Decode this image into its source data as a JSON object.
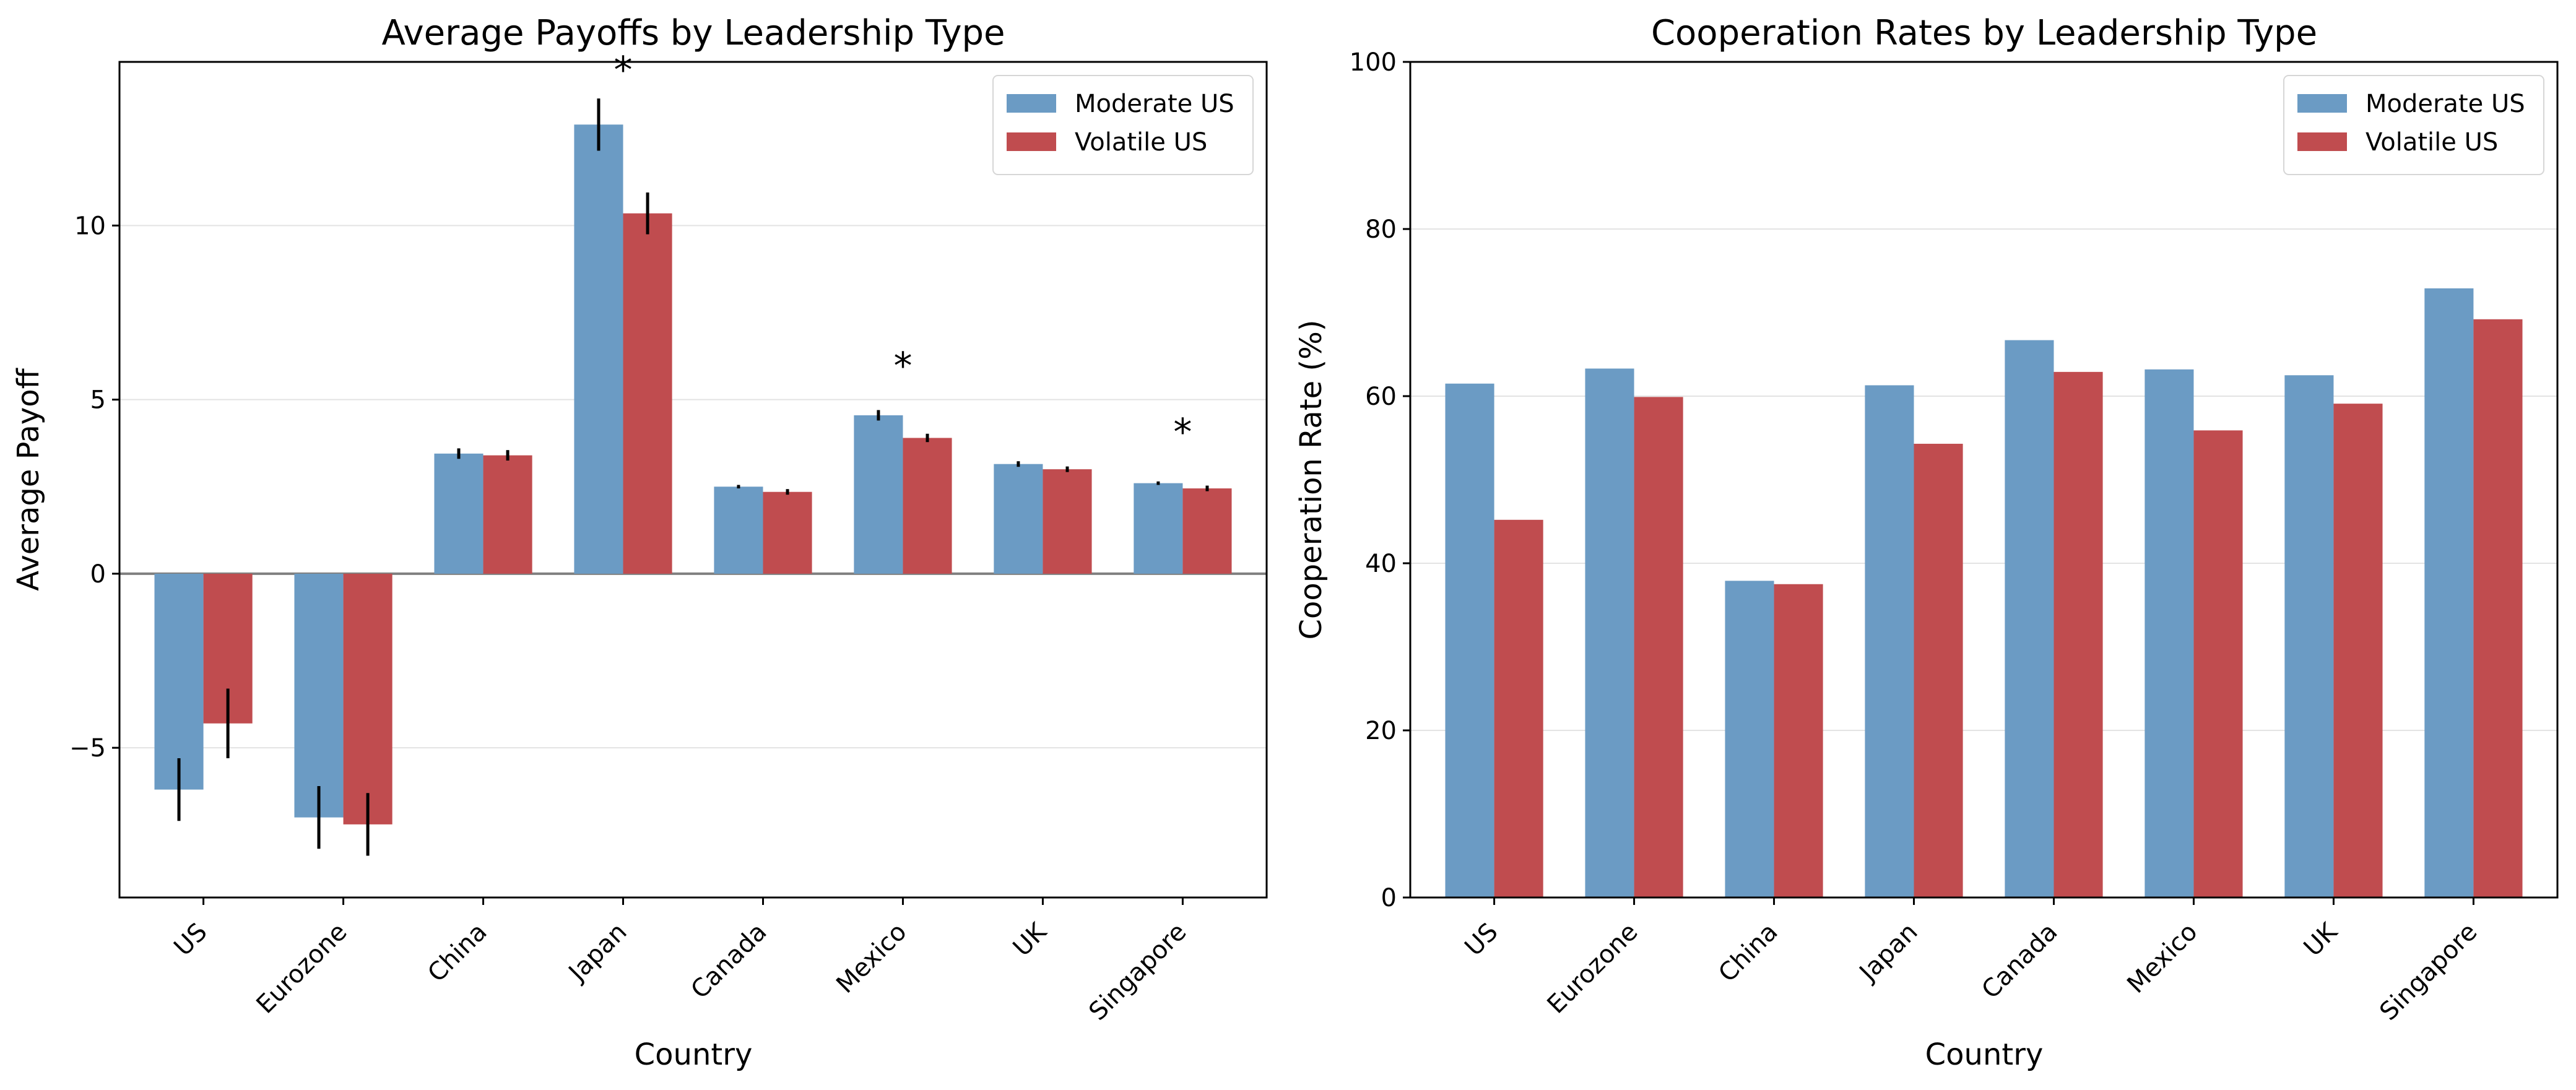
{
  "chart_data": [
    {
      "type": "bar",
      "title": "Average Payoffs by Leadership Type",
      "xlabel": "Country",
      "ylabel": "Average Payoff",
      "categories": [
        "US",
        "Eurozone",
        "China",
        "Japan",
        "Canada",
        "Mexico",
        "UK",
        "Singapore"
      ],
      "ylim": [
        -9.3,
        14.7
      ],
      "yticks": [
        -5,
        0,
        5,
        10
      ],
      "ytick_labels": [
        "−5",
        "0",
        "5",
        "10"
      ],
      "grid": "horizontal",
      "legend_position": "top-right",
      "zero_line": true,
      "series": [
        {
          "name": "Moderate US",
          "color": "#6b9bc4",
          "values": [
            -6.2,
            -7.0,
            3.45,
            12.9,
            2.5,
            4.55,
            3.15,
            2.6
          ],
          "errors": [
            0.9,
            0.9,
            0.15,
            0.75,
            0.05,
            0.15,
            0.08,
            0.05
          ]
        },
        {
          "name": "Volatile US",
          "color": "#c04c4f",
          "values": [
            -4.3,
            -7.2,
            3.4,
            10.35,
            2.35,
            3.9,
            3.0,
            2.45
          ],
          "errors": [
            1.0,
            0.9,
            0.15,
            0.6,
            0.08,
            0.12,
            0.08,
            0.08
          ]
        }
      ],
      "annotations": [
        {
          "text": "*",
          "category": "Japan",
          "y": 14.5
        },
        {
          "text": "*",
          "category": "Mexico",
          "y": 6.0
        },
        {
          "text": "*",
          "category": "Singapore",
          "y": 4.1
        }
      ]
    },
    {
      "type": "bar",
      "title": "Cooperation Rates by Leadership Type",
      "xlabel": "Country",
      "ylabel": "Cooperation Rate (%)",
      "categories": [
        "US",
        "Eurozone",
        "China",
        "Japan",
        "Canada",
        "Mexico",
        "UK",
        "Singapore"
      ],
      "ylim": [
        0,
        100
      ],
      "yticks": [
        0,
        20,
        40,
        60,
        80,
        100
      ],
      "ytick_labels": [
        "0",
        "20",
        "40",
        "60",
        "80",
        "100"
      ],
      "grid": "horizontal",
      "legend_position": "top-right",
      "series": [
        {
          "name": "Moderate US",
          "color": "#6b9bc4",
          "values": [
            61.5,
            63.3,
            37.9,
            61.3,
            66.7,
            63.2,
            62.5,
            72.9
          ]
        },
        {
          "name": "Volatile US",
          "color": "#c04c4f",
          "values": [
            45.2,
            59.9,
            37.5,
            54.3,
            62.9,
            55.9,
            59.1,
            69.2
          ]
        }
      ]
    }
  ]
}
